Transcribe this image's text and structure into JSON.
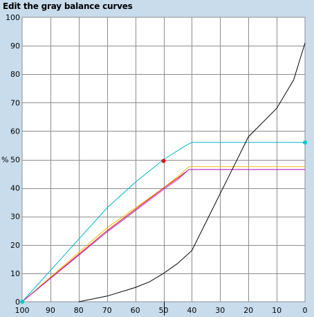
{
  "window": {
    "title": "Edit the gray balance curves"
  },
  "colors": {
    "background": "#c8dcec",
    "plot_background": "#ffffff",
    "grid": "#8c8c8c",
    "marker_red": "#e01010",
    "marker_cyan": "#00c8c8"
  },
  "chart_data": {
    "type": "line",
    "title": "",
    "xlabel": "",
    "ylabel": "%",
    "xlim": [
      100,
      0
    ],
    "ylim": [
      0,
      100
    ],
    "x_ticks": [
      "100",
      "90",
      "80",
      "70",
      "60",
      "50",
      "40",
      "30",
      "20",
      "10",
      "0"
    ],
    "y_ticks": [
      "0",
      "10",
      "20",
      "30",
      "40",
      "50",
      "60",
      "70",
      "80",
      "90",
      "100"
    ],
    "grid": true,
    "series": [
      {
        "color": "#00b8c8",
        "points": [
          [
            100,
            0
          ],
          [
            70,
            33
          ],
          [
            60,
            42
          ],
          [
            50,
            50
          ],
          [
            42,
            55
          ],
          [
            40,
            56
          ],
          [
            0,
            56
          ]
        ]
      },
      {
        "color": "#f0b800",
        "points": [
          [
            100,
            0
          ],
          [
            70,
            26
          ],
          [
            50,
            40
          ],
          [
            45,
            44
          ],
          [
            41,
            47.5
          ],
          [
            0,
            47.5
          ]
        ]
      },
      {
        "color": "#e01010",
        "points": [
          [
            100,
            0
          ],
          [
            70,
            25
          ],
          [
            50,
            40
          ],
          [
            45,
            43.5
          ],
          [
            41,
            46.5
          ],
          [
            0,
            46.5
          ]
        ]
      },
      {
        "color": "#b030e0",
        "points": [
          [
            100,
            0
          ],
          [
            70,
            24.5
          ],
          [
            50,
            39.5
          ],
          [
            45,
            43
          ],
          [
            41,
            46.5
          ],
          [
            0,
            46.5
          ]
        ]
      },
      {
        "color": "#000000",
        "points": [
          [
            80,
            0
          ],
          [
            70,
            2
          ],
          [
            60,
            5
          ],
          [
            55,
            7
          ],
          [
            50,
            10
          ],
          [
            45,
            13.5
          ],
          [
            40,
            18
          ],
          [
            35,
            28
          ],
          [
            30,
            38
          ],
          [
            25,
            48
          ],
          [
            20,
            58
          ],
          [
            10,
            68
          ],
          [
            4,
            78
          ],
          [
            0,
            91
          ]
        ]
      }
    ],
    "control_points": [
      {
        "x": 50,
        "y": 49.5,
        "color": "#e01010"
      },
      {
        "x": 0,
        "y": 56,
        "color": "#00c8c8"
      },
      {
        "x": 100,
        "y": 0,
        "color": "#00c8c8"
      }
    ]
  }
}
